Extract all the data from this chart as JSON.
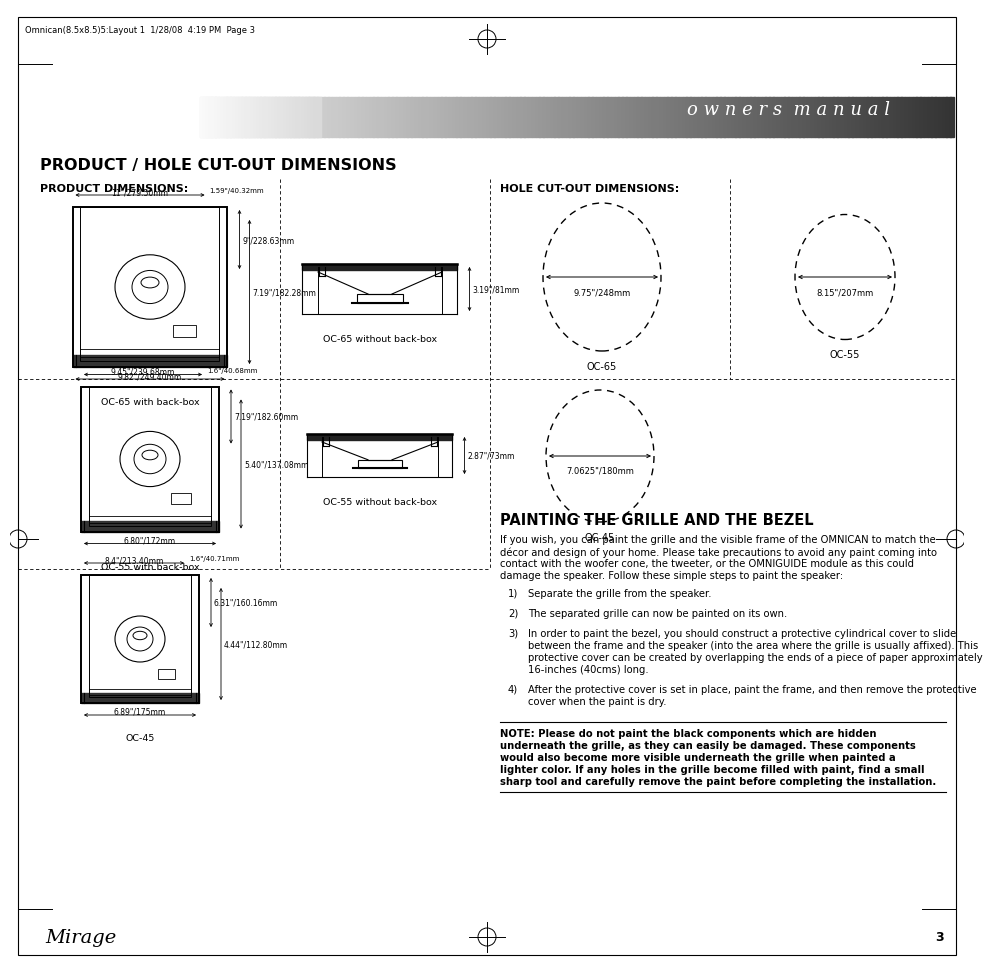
{
  "page_header_text": "Omnican(8.5x8.5)5:Layout 1  1/28/08  4:19 PM  Page 3",
  "owners_manual_text": "o w n e r s  m a n u a l",
  "title": "PRODUCT / HOLE CUT-OUT DIMENSIONS",
  "subtitle_left": "PRODUCT DIMENSIONS:",
  "subtitle_right": "HOLE CUT-OUT DIMENSIONS:",
  "section2_title": "PAINTING THE GRILLE AND THE BEZEL",
  "section2_body1": "If you wish, you can paint the grille and the visible frame of the OMNICAN to match the décor and design of your home. Please take precautions to avoid any paint coming into contact with the woofer cone, the tweeter, or the OMNIGUIDE module as this could damage the speaker. Follow these simple steps to paint the speaker:",
  "step1": "Separate the grille from the speaker.",
  "step2": "The separated grille can now be painted on its own.",
  "step3": "In order to paint the bezel, you should construct a protective cylindrical cover to slide between the frame and the speaker (into the area where the grille is usually affixed). This protective cover can be created by overlapping the ends of a piece of paper approximately 16-inches (40cms) long.",
  "step4": "After the protective cover is set in place, paint the frame, and then remove the protective cover when the paint is dry.",
  "note_text": "NOTE: Please do not paint the black components which are hidden underneath the grille, as they can easily be damaged. These components would also become more visible underneath the grille when painted a lighter color. If any holes in the grille become filled with paint, find a small sharp tool and carefully remove the paint before completing the installation.",
  "labels": {
    "oc65_backbox": "OC-65 with back-box",
    "oc65_no_backbox": "OC-65 without back-box",
    "oc55_backbox": "OC-55 with back-box",
    "oc55_no_backbox": "OC-55 without back-box",
    "oc45_backbox": "OC-45",
    "oc65_hole": "OC-65",
    "oc55_hole": "OC-55",
    "oc45_hole": "OC-45"
  },
  "dim_oc65_top": "11\"/279.50mm",
  "dim_oc65_tr": "1.59\"/40.32mm",
  "dim_oc65_h1": "9\"/228.63mm",
  "dim_oc65_h2": "7.19\"/182.28mm",
  "dim_oc65_bot": "9.82\"/249.40mm",
  "dim_oc65_side": "3.19\"/81mm",
  "dim_oc55_top": "9.45\"/239.68mm",
  "dim_oc55_tr": "1.6\"/40.68mm",
  "dim_oc55_h1": "7.19\"/182.60mm",
  "dim_oc55_h2": "5.40\"/137.08mm",
  "dim_oc55_bot": "6.80\"/172mm",
  "dim_oc55_side": "2.87\"/73mm",
  "dim_oc45_top": "8.4\"/213.40mm",
  "dim_oc45_tr": "1.6\"/40.71mm",
  "dim_oc45_h1": "6.31\"/160.16mm",
  "dim_oc45_h2": "4.44\"/112.80mm",
  "dim_oc45_bot": "6.89\"/175mm",
  "dim_oc65_hole": "9.75\"/248mm",
  "dim_oc55_hole": "8.15\"/207mm",
  "dim_oc45_hole": "7.0625\"/180mm",
  "bg_color": "#ffffff",
  "page_num": "3",
  "logo_text": "Mirage"
}
